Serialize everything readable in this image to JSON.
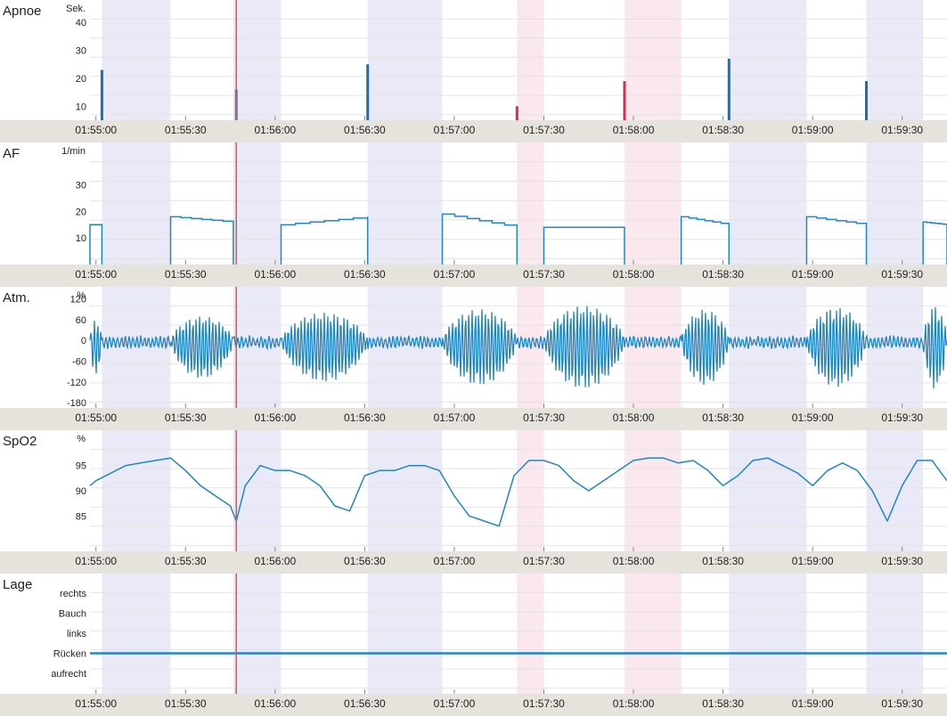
{
  "colors": {
    "trace": "#1f86c8",
    "apnea_bar": "#1a6fb5",
    "hypopnea_bar": "#5577a8",
    "desat_bar": "#d8304a",
    "cursor": "#e05545",
    "band_apnea": "#e9e9f8",
    "band_desat": "#fbe7ee",
    "axis_strip": "#e6e2dc",
    "grid": "#e4e4e4"
  },
  "x_ticks": [
    "01:55:00",
    "01:55:30",
    "01:56:00",
    "01:56:30",
    "01:57:00",
    "01:57:30",
    "01:58:00",
    "01:58:30",
    "01:59:00",
    "01:59:30"
  ],
  "cursor_time": "01:55:47",
  "chart_data": [
    {
      "type": "bar",
      "title": "Apnoe",
      "unit": "Sek.",
      "yticks": [
        "40",
        "30",
        "20",
        "10"
      ],
      "ylim": [
        5,
        48
      ],
      "x_range": [
        "01:54:58",
        "01:59:45"
      ],
      "bands": [
        {
          "kind": "apnea",
          "start": "01:55:02",
          "end": "01:55:25"
        },
        {
          "kind": "apnea",
          "start": "01:55:46",
          "end": "01:56:02"
        },
        {
          "kind": "apnea",
          "start": "01:56:31",
          "end": "01:56:56"
        },
        {
          "kind": "desat",
          "start": "01:57:21",
          "end": "01:57:30"
        },
        {
          "kind": "desat",
          "start": "01:57:57",
          "end": "01:58:16"
        },
        {
          "kind": "apnea",
          "start": "01:58:32",
          "end": "01:58:58"
        },
        {
          "kind": "apnea",
          "start": "01:59:18",
          "end": "01:59:37"
        }
      ],
      "events": [
        {
          "time": "01:55:02",
          "value": 23,
          "kind": "apnea"
        },
        {
          "time": "01:55:47",
          "value": 16,
          "kind": "hypopnea"
        },
        {
          "time": "01:56:31",
          "value": 25,
          "kind": "apnea"
        },
        {
          "time": "01:57:21",
          "value": 10,
          "kind": "desat"
        },
        {
          "time": "01:57:57",
          "value": 19,
          "kind": "desat"
        },
        {
          "time": "01:58:32",
          "value": 27,
          "kind": "apnea"
        },
        {
          "time": "01:59:18",
          "value": 19,
          "kind": "apnea"
        }
      ]
    },
    {
      "type": "line",
      "title": "AF",
      "unit": "1/min",
      "yticks": [
        "30",
        "20",
        "10"
      ],
      "ylim": [
        0,
        46
      ],
      "x_range": [
        "01:54:58",
        "01:59:45"
      ],
      "segments": [
        {
          "t": [
            "01:54:58",
            "01:55:02"
          ],
          "y": [
            15,
            15
          ]
        },
        {
          "t": [
            "01:55:25",
            "01:55:46"
          ],
          "y": [
            18,
            16
          ]
        },
        {
          "t": [
            "01:56:02",
            "01:56:31"
          ],
          "y": [
            15,
            18
          ]
        },
        {
          "t": [
            "01:56:56",
            "01:57:21"
          ],
          "y": [
            19,
            14
          ]
        },
        {
          "t": [
            "01:57:30",
            "01:57:57"
          ],
          "y": [
            14,
            14
          ]
        },
        {
          "t": [
            "01:58:16",
            "01:58:32"
          ],
          "y": [
            18,
            15
          ]
        },
        {
          "t": [
            "01:58:58",
            "01:59:18"
          ],
          "y": [
            18,
            15
          ]
        },
        {
          "t": [
            "01:59:37",
            "01:59:45"
          ],
          "y": [
            16,
            15
          ]
        }
      ]
    },
    {
      "type": "line",
      "title": "Atm.",
      "unit": "%",
      "yticks": [
        "120",
        "60",
        "0",
        "-60",
        "-120",
        "-180"
      ],
      "ylim": [
        -195,
        155
      ],
      "x_range": [
        "01:54:58",
        "01:59:45"
      ],
      "series": {
        "name": "",
        "breath_period_s": 1.1,
        "breath_onsets": [
          "01:54:58",
          "01:55:25",
          "01:56:02",
          "01:56:56",
          "01:57:30",
          "01:58:16",
          "01:58:58",
          "01:59:37"
        ],
        "breath_ends": [
          "01:55:02",
          "01:55:46",
          "01:56:31",
          "01:57:21",
          "01:57:57",
          "01:58:32",
          "01:59:18",
          "01:59:45"
        ],
        "peak_amplitude": [
          80,
          90,
          100,
          110,
          120,
          110,
          115,
          120
        ],
        "baseline_noise": 15
      }
    },
    {
      "type": "line",
      "title": "SpO2",
      "unit": "%",
      "yticks": [
        "95",
        "90",
        "85"
      ],
      "ylim": [
        78,
        102
      ],
      "x_range": [
        "01:54:58",
        "01:59:45"
      ],
      "series": {
        "name": "",
        "t": [
          "01:54:58",
          "01:55:00",
          "01:55:05",
          "01:55:10",
          "01:55:15",
          "01:55:20",
          "01:55:25",
          "01:55:30",
          "01:55:35",
          "01:55:40",
          "01:55:45",
          "01:55:47",
          "01:55:50",
          "01:55:55",
          "01:56:00",
          "01:56:05",
          "01:56:10",
          "01:56:15",
          "01:56:20",
          "01:56:25",
          "01:56:30",
          "01:56:35",
          "01:56:40",
          "01:56:45",
          "01:56:50",
          "01:56:55",
          "01:57:00",
          "01:57:05",
          "01:57:10",
          "01:57:15",
          "01:57:20",
          "01:57:25",
          "01:57:30",
          "01:57:35",
          "01:57:40",
          "01:57:45",
          "01:57:50",
          "01:57:55",
          "01:58:00",
          "01:58:05",
          "01:58:10",
          "01:58:15",
          "01:58:20",
          "01:58:25",
          "01:58:30",
          "01:58:35",
          "01:58:40",
          "01:58:45",
          "01:58:50",
          "01:58:55",
          "01:59:00",
          "01:59:05",
          "01:59:10",
          "01:59:15",
          "01:59:20",
          "01:59:25",
          "01:59:30",
          "01:59:35",
          "01:59:40",
          "01:59:45"
        ],
        "values": [
          91,
          92,
          93.5,
          95,
          95.5,
          96,
          96.5,
          94,
          91,
          89,
          87,
          84,
          91,
          95,
          94,
          94,
          93,
          91,
          87,
          86,
          93,
          94,
          94,
          95,
          95,
          94,
          89,
          85,
          84,
          83,
          93,
          96,
          96,
          95,
          92,
          90,
          92,
          94,
          96,
          96.5,
          96.5,
          95.5,
          96,
          94,
          91,
          93,
          96,
          96.5,
          95,
          93.5,
          91,
          94,
          95.5,
          94,
          90,
          84,
          91,
          96,
          96,
          92
        ]
      }
    },
    {
      "type": "line",
      "title": "Lage",
      "yticks": [
        "rechts",
        "Bauch",
        "links",
        "Rücken",
        "aufrecht"
      ],
      "x_range": [
        "01:54:58",
        "01:59:45"
      ],
      "series": {
        "name": "",
        "constant": "Rücken"
      }
    }
  ]
}
